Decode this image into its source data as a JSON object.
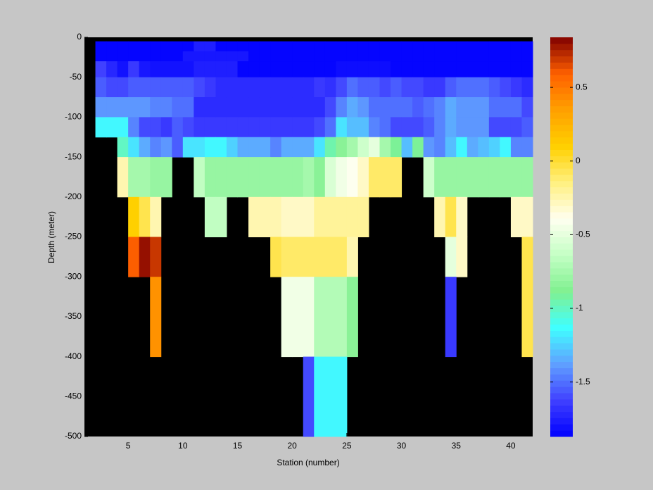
{
  "chart_data": {
    "type": "heatmap",
    "xlabel": "Station (number)",
    "ylabel": "Depth (meter)",
    "x": [
      2,
      3,
      4,
      5,
      6,
      7,
      8,
      9,
      10,
      11,
      12,
      13,
      14,
      15,
      16,
      17,
      18,
      19,
      20,
      21,
      22,
      23,
      24,
      25,
      26,
      27,
      28,
      29,
      30,
      31,
      32,
      33,
      34,
      35,
      36,
      37,
      38,
      39,
      40,
      41,
      42
    ],
    "depth_edges": [
      -5,
      -17.5,
      -30,
      -50,
      -75,
      -100,
      -125,
      -150,
      -200,
      -250,
      -300,
      -400,
      -500
    ],
    "values": [
      [
        -1.85,
        -1.85,
        -1.85,
        -1.85,
        -1.85,
        -1.85,
        -1.85,
        -1.85,
        -1.85,
        -1.75,
        -1.75,
        -1.85,
        -1.85,
        -1.85,
        -1.85,
        -1.85,
        -1.85,
        -1.85,
        -1.85,
        -1.85,
        -1.85,
        -1.85,
        -1.85,
        -1.85,
        -1.85,
        -1.85,
        -1.85,
        -1.85,
        -1.85,
        -1.85,
        -1.85,
        -1.85,
        -1.85,
        -1.85,
        -1.85,
        -1.85,
        -1.85,
        -1.85,
        -1.85,
        -1.85
      ],
      [
        -1.85,
        -1.85,
        -1.85,
        -1.85,
        -1.85,
        -1.85,
        -1.85,
        -1.85,
        -1.78,
        -1.78,
        -1.78,
        -1.78,
        -1.78,
        -1.78,
        -1.85,
        -1.85,
        -1.85,
        -1.85,
        -1.85,
        -1.85,
        -1.85,
        -1.85,
        -1.85,
        -1.85,
        -1.85,
        -1.85,
        -1.85,
        -1.85,
        -1.85,
        -1.85,
        -1.85,
        -1.85,
        -1.85,
        -1.85,
        -1.85,
        -1.85,
        -1.85,
        -1.85,
        -1.85,
        -1.85
      ],
      [
        -1.62,
        -1.72,
        -1.8,
        -1.65,
        -1.78,
        -1.8,
        -1.8,
        -1.8,
        -1.8,
        -1.75,
        -1.75,
        -1.75,
        -1.75,
        -1.85,
        -1.85,
        -1.85,
        -1.85,
        -1.85,
        -1.85,
        -1.85,
        -1.85,
        -1.85,
        -1.82,
        -1.82,
        -1.82,
        -1.82,
        -1.82,
        -1.85,
        -1.85,
        -1.85,
        -1.85,
        -1.85,
        -1.85,
        -1.85,
        -1.85,
        -1.85,
        -1.85,
        -1.85,
        -1.85,
        -1.85
      ],
      [
        -1.55,
        -1.6,
        -1.6,
        -1.55,
        -1.55,
        -1.55,
        -1.55,
        -1.55,
        -1.55,
        -1.6,
        -1.65,
        -1.7,
        -1.7,
        -1.7,
        -1.7,
        -1.7,
        -1.7,
        -1.7,
        -1.7,
        -1.7,
        -1.65,
        -1.68,
        -1.6,
        -1.5,
        -1.55,
        -1.55,
        -1.6,
        -1.55,
        -1.6,
        -1.6,
        -1.65,
        -1.65,
        -1.55,
        -1.5,
        -1.5,
        -1.5,
        -1.55,
        -1.6,
        -1.65,
        -1.7
      ],
      [
        -1.4,
        -1.4,
        -1.4,
        -1.4,
        -1.4,
        -1.45,
        -1.45,
        -1.5,
        -1.5,
        -1.7,
        -1.7,
        -1.7,
        -1.7,
        -1.7,
        -1.7,
        -1.7,
        -1.7,
        -1.7,
        -1.7,
        -1.7,
        -1.7,
        -1.6,
        -1.45,
        -1.35,
        -1.4,
        -1.5,
        -1.5,
        -1.5,
        -1.5,
        -1.55,
        -1.5,
        -1.45,
        -1.35,
        -1.4,
        -1.4,
        -1.4,
        -1.5,
        -1.5,
        -1.5,
        -1.6
      ],
      [
        -1.15,
        -1.15,
        -1.15,
        -1.45,
        -1.6,
        -1.6,
        -1.65,
        -1.55,
        -1.6,
        -1.65,
        -1.65,
        -1.65,
        -1.65,
        -1.65,
        -1.65,
        -1.65,
        -1.65,
        -1.65,
        -1.65,
        -1.65,
        -1.6,
        -1.5,
        -1.2,
        -1.3,
        -1.3,
        -1.45,
        -1.5,
        -1.6,
        -1.6,
        -1.6,
        -1.55,
        -1.45,
        -1.35,
        -1.4,
        -1.4,
        -1.4,
        -1.6,
        -1.6,
        -1.6,
        -1.55
      ],
      [
        null,
        null,
        -1.0,
        -1.2,
        -1.35,
        -1.45,
        -1.4,
        -1.55,
        -1.2,
        -1.2,
        -1.15,
        -1.15,
        -1.25,
        -1.35,
        -1.35,
        -1.35,
        -1.45,
        -1.35,
        -1.35,
        -1.35,
        -1.2,
        -0.95,
        -0.85,
        -0.75,
        -0.6,
        -0.5,
        -0.75,
        -0.9,
        -1.3,
        -0.9,
        -1.4,
        -1.45,
        -1.3,
        -1.15,
        -1.35,
        -1.3,
        -1.25,
        -1.15,
        -1.45,
        -1.45
      ],
      [
        null,
        null,
        -0.25,
        -0.75,
        -0.75,
        -0.8,
        -0.8,
        null,
        null,
        -0.65,
        -0.8,
        -0.8,
        -0.8,
        -0.8,
        -0.8,
        -0.8,
        -0.8,
        -0.8,
        -0.8,
        -0.75,
        -0.85,
        -0.55,
        -0.45,
        -0.4,
        -0.3,
        -0.1,
        -0.1,
        -0.1,
        null,
        null,
        -0.6,
        -0.8,
        -0.8,
        -0.8,
        -0.8,
        -0.8,
        -0.8,
        -0.8,
        -0.8,
        -0.8
      ],
      [
        null,
        null,
        null,
        0.1,
        -0.05,
        -0.25,
        null,
        null,
        null,
        null,
        -0.65,
        -0.65,
        null,
        null,
        -0.25,
        -0.25,
        -0.25,
        -0.3,
        -0.3,
        -0.3,
        -0.2,
        -0.2,
        -0.2,
        -0.2,
        -0.2,
        null,
        null,
        null,
        null,
        null,
        null,
        -0.25,
        -0.05,
        -0.3,
        null,
        null,
        null,
        null,
        -0.3,
        -0.3
      ],
      [
        null,
        null,
        null,
        0.6,
        0.8,
        0.7,
        null,
        null,
        null,
        null,
        null,
        null,
        null,
        null,
        null,
        null,
        -0.05,
        -0.1,
        -0.1,
        -0.1,
        -0.1,
        -0.1,
        -0.1,
        -0.25,
        null,
        null,
        null,
        null,
        null,
        null,
        null,
        null,
        -0.5,
        -0.3,
        null,
        null,
        null,
        null,
        null,
        -0.05
      ],
      [
        null,
        null,
        null,
        null,
        null,
        0.4,
        null,
        null,
        null,
        null,
        null,
        null,
        null,
        null,
        null,
        null,
        null,
        -0.45,
        -0.45,
        -0.45,
        -0.7,
        -0.7,
        -0.7,
        -0.85,
        null,
        null,
        null,
        null,
        null,
        null,
        null,
        null,
        -1.65,
        null,
        null,
        null,
        null,
        null,
        null,
        -0.05
      ],
      [
        null,
        null,
        null,
        null,
        null,
        null,
        null,
        null,
        null,
        null,
        null,
        null,
        null,
        null,
        null,
        null,
        null,
        null,
        null,
        -1.6,
        -1.15,
        -1.15,
        -1.15,
        null,
        null,
        null,
        null,
        null,
        null,
        null,
        null,
        null,
        null,
        null,
        null,
        null,
        null,
        null,
        null,
        null
      ]
    ],
    "xlim": [
      1,
      42
    ],
    "xticks": [
      5,
      10,
      15,
      20,
      25,
      30,
      35,
      40
    ],
    "ylim": [
      -500,
      0
    ],
    "yticks": [
      0,
      -50,
      -100,
      -150,
      -200,
      -250,
      -300,
      -350,
      -400,
      -450,
      -500
    ],
    "clim": [
      -1.87,
      0.84
    ],
    "cticks": [
      0.5,
      0,
      -0.5,
      -1,
      -1.5
    ],
    "colormap": [
      "#0000ff",
      "#4040ff",
      "#60a0ff",
      "#40ffff",
      "#80f090",
      "#c4ffc4",
      "#fffff0",
      "#fff080",
      "#ffd000",
      "#ffa000",
      "#ff6000",
      "#800000"
    ],
    "background": "#000000"
  }
}
